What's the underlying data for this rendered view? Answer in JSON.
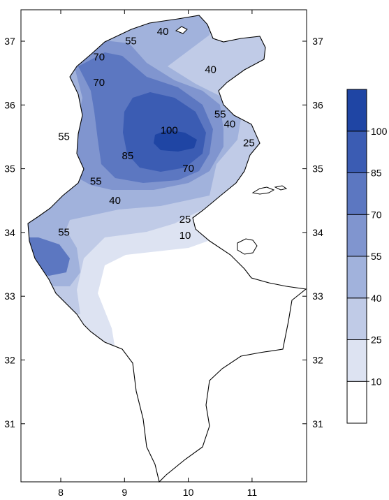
{
  "chart_data": {
    "type": "heatmap",
    "x_ticks": [
      "8",
      "9",
      "10",
      "11"
    ],
    "y_ticks": [
      "37",
      "36",
      "35",
      "34",
      "33",
      "32",
      "31"
    ],
    "xlim": [
      7.4,
      11.9
    ],
    "ylim": [
      30.0,
      37.6
    ],
    "legend_placement": "right",
    "legend_levels": [
      "10",
      "25",
      "40",
      "55",
      "70",
      "85",
      "100"
    ],
    "contour_labels": [
      {
        "text": "40",
        "x": 9.6,
        "y": 37.1
      },
      {
        "text": "55",
        "x": 9.1,
        "y": 36.95
      },
      {
        "text": "70",
        "x": 8.6,
        "y": 36.7
      },
      {
        "text": "70",
        "x": 8.6,
        "y": 36.3
      },
      {
        "text": "40",
        "x": 10.35,
        "y": 36.5
      },
      {
        "text": "55",
        "x": 10.5,
        "y": 35.8
      },
      {
        "text": "40",
        "x": 10.65,
        "y": 35.65
      },
      {
        "text": "25",
        "x": 10.95,
        "y": 35.35
      },
      {
        "text": "100",
        "x": 9.7,
        "y": 35.55
      },
      {
        "text": "85",
        "x": 9.05,
        "y": 35.15
      },
      {
        "text": "70",
        "x": 10.0,
        "y": 34.95
      },
      {
        "text": "55",
        "x": 8.05,
        "y": 35.45
      },
      {
        "text": "55",
        "x": 8.55,
        "y": 34.75
      },
      {
        "text": "40",
        "x": 8.85,
        "y": 34.45
      },
      {
        "text": "25",
        "x": 9.95,
        "y": 34.15
      },
      {
        "text": "10",
        "x": 9.95,
        "y": 33.9
      },
      {
        "text": "55",
        "x": 8.05,
        "y": 33.95
      }
    ],
    "colors": [
      "#ffffff",
      "#dde3f2",
      "#c0cbe7",
      "#a1b2dc",
      "#8095cf",
      "#5c77c1",
      "#3b5cb3",
      "#1f45a4"
    ]
  }
}
